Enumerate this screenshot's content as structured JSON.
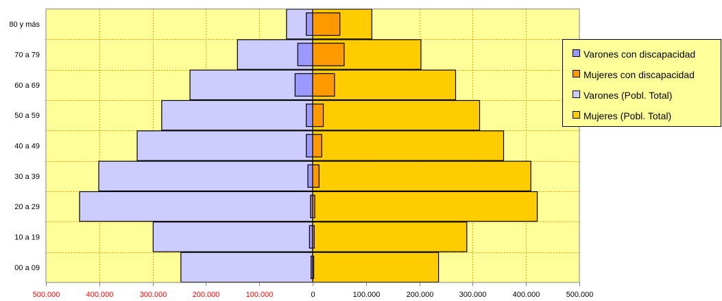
{
  "chart_data": {
    "type": "bar",
    "orientation": "horizontal",
    "subtype": "population-pyramid",
    "categories": [
      "00 a 09",
      "10 a 19",
      "20 a 29",
      "30 a 39",
      "40 a 49",
      "50 a 59",
      "60 a 69",
      "70 a 79",
      "80 y más"
    ],
    "series": [
      {
        "name": "Varones con discapacidad",
        "side": "left",
        "color": "#9999ff",
        "values": [
          3000,
          6000,
          4000,
          9000,
          12000,
          12000,
          33000,
          28000,
          12000
        ]
      },
      {
        "name": "Mujeres con discapacidad",
        "side": "right",
        "color": "#ff9900",
        "values": [
          2000,
          3000,
          4000,
          12000,
          17000,
          20000,
          41000,
          59000,
          51000
        ]
      },
      {
        "name": "Varones (Pobl. Total)",
        "side": "left",
        "color": "#ccccff",
        "values": [
          247000,
          299000,
          437000,
          401000,
          329000,
          283000,
          230000,
          141000,
          49000
        ]
      },
      {
        "name": "Mujeres (Pobl. Total)",
        "side": "right",
        "color": "#ffcc00",
        "values": [
          236000,
          289000,
          421000,
          409000,
          358000,
          313000,
          268000,
          203000,
          111000
        ]
      }
    ],
    "xlim": [
      -500000,
      500000
    ],
    "xticks": [
      -500000,
      -400000,
      -300000,
      -200000,
      -100000,
      0,
      100000,
      200000,
      300000,
      400000,
      500000
    ],
    "xtick_labels": [
      "500.000",
      "400.000",
      "300.000",
      "200.000",
      "100.000",
      "0",
      "100.000",
      "200.000",
      "300.000",
      "400.000",
      "500.000"
    ],
    "xtick_label_colors": {
      "left": "#ff0000",
      "right": "#000000"
    },
    "plot_background": "#ffff99",
    "grid": true,
    "grid_color": "#ff9900",
    "legend": "right"
  }
}
